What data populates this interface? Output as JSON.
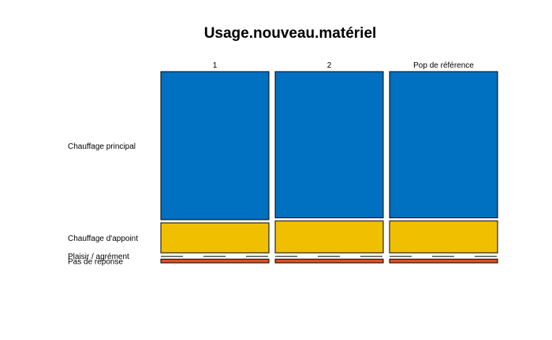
{
  "chart_data": {
    "type": "mosaic",
    "title": "Usage.nouveau.matériel",
    "columns": [
      "1",
      "2",
      "Pop de référence"
    ],
    "rows": [
      "Chauffage principal",
      "Chauffage d'appoint",
      "Plaisir / agrément",
      "Pas de réponse"
    ],
    "colors": {
      "Chauffage principal": "#0070c0",
      "Chauffage d'appoint": "#f0c000",
      "Plaisir / agrément": "#ffffff",
      "Pas de réponse": "#e05020"
    },
    "proportions": [
      [
        0.79,
        0.16,
        0.0,
        0.02
      ],
      [
        0.78,
        0.17,
        0.0,
        0.02
      ],
      [
        0.78,
        0.17,
        0.0,
        0.02
      ]
    ],
    "grid": false,
    "legend": "none"
  }
}
